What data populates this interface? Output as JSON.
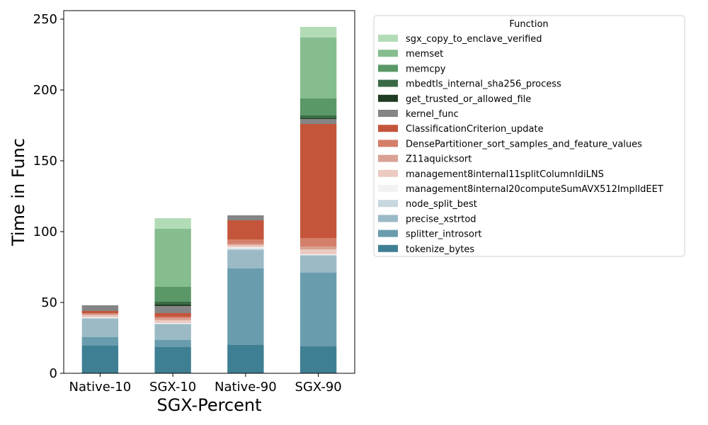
{
  "chart_data": {
    "type": "bar",
    "stacked": true,
    "xlabel": "SGX-Percent",
    "ylabel": "Time in Func",
    "ylim": [
      0,
      256
    ],
    "yticks": [
      0,
      50,
      100,
      150,
      200,
      250
    ],
    "categories": [
      "Native-10",
      "SGX-10",
      "Native-90",
      "SGX-90"
    ],
    "legend": {
      "title": "Function",
      "placement": "outside-right"
    },
    "series": [
      {
        "name": "tokenize_bytes",
        "color": "#3f7f93",
        "values": [
          19.5,
          18.5,
          20,
          19
        ]
      },
      {
        "name": "splitter_introsort",
        "color": "#699dad",
        "values": [
          6,
          5,
          54,
          52
        ]
      },
      {
        "name": "precise_xstrtod",
        "color": "#9bbac6",
        "values": [
          13,
          11,
          13,
          12
        ]
      },
      {
        "name": "node_split_best",
        "color": "#c7d7dd",
        "values": [
          0.5,
          0.5,
          1,
          0.5
        ]
      },
      {
        "name": "management8internal20computeSumAVX512ImplIdEET",
        "color": "#f2f2f2",
        "values": [
          0.5,
          0.5,
          1,
          0.5
        ]
      },
      {
        "name": "management8internal11splitColumnIdiLNS",
        "color": "#ebcac2",
        "values": [
          1.5,
          2,
          1.5,
          3.5
        ]
      },
      {
        "name": "Z11aquicksort",
        "color": "#d9a194",
        "values": [
          1,
          1.5,
          1,
          2
        ]
      },
      {
        "name": "DensePartitioner_sort_samples_and_feature_values",
        "color": "#d47f69",
        "values": [
          0.5,
          1,
          3,
          6
        ]
      },
      {
        "name": "ClassificationCriterion_update",
        "color": "#c4553b",
        "values": [
          1.5,
          2.5,
          13.5,
          80.5
        ]
      },
      {
        "name": "kernel_func",
        "color": "#858585",
        "values": [
          4,
          5,
          3.5,
          3.5
        ]
      },
      {
        "name": "get_trusted_or_allowed_file",
        "color": "#1e3d24",
        "values": [
          0,
          1,
          0,
          0.5
        ]
      },
      {
        "name": "mbedtls_internal_sha256_process",
        "color": "#3b6b45",
        "values": [
          0,
          2,
          0,
          2
        ]
      },
      {
        "name": "memcpy",
        "color": "#5a9867",
        "values": [
          0,
          10.5,
          0,
          12
        ]
      },
      {
        "name": "memset",
        "color": "#86bd8e",
        "values": [
          0,
          41,
          0,
          43
        ]
      },
      {
        "name": "sgx_copy_to_enclave_verified",
        "color": "#b2dcb6",
        "values": [
          0,
          7.5,
          0,
          7.5
        ]
      }
    ]
  }
}
